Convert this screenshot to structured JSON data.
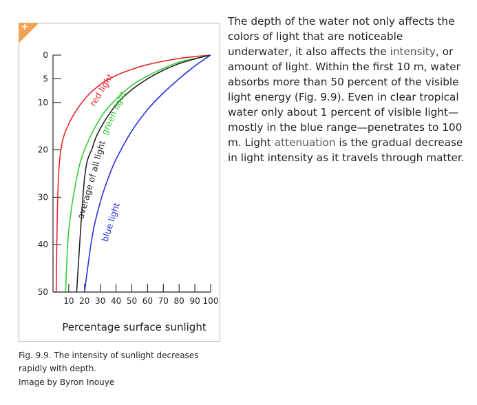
{
  "chart_data": {
    "type": "line",
    "xlabel": "Percentage surface sunlight",
    "ylabel": "",
    "xlim": [
      0,
      100
    ],
    "ylim": [
      0,
      50
    ],
    "y_inverted": true,
    "x_ticks": [
      10,
      20,
      30,
      40,
      50,
      60,
      70,
      80,
      90,
      100
    ],
    "y_ticks": [
      0,
      5,
      10,
      20,
      30,
      40,
      50
    ],
    "series": [
      {
        "name": "red light",
        "color": "#e8232a",
        "x": [
          100,
          90,
          80,
          70,
          60,
          50,
          40,
          30,
          20,
          10,
          5,
          3,
          2
        ],
        "y": [
          0,
          0.3,
          0.7,
          1.3,
          2,
          3,
          4.3,
          6.2,
          9.3,
          14.5,
          20,
          30,
          50
        ]
      },
      {
        "name": "green light",
        "color": "#33cc33",
        "x": [
          100,
          90,
          80,
          70,
          60,
          50,
          40,
          30,
          20,
          15,
          10,
          8
        ],
        "y": [
          0,
          0.7,
          1.5,
          2.8,
          4.4,
          6.4,
          9.3,
          13.3,
          20,
          26,
          37,
          50
        ]
      },
      {
        "name": "average of all light",
        "color": "#222222",
        "x": [
          100,
          90,
          80,
          70,
          60,
          50,
          40,
          30,
          25,
          20,
          15
        ],
        "y": [
          0,
          0.8,
          1.8,
          3.2,
          5,
          7.3,
          10.5,
          15.5,
          19.5,
          26,
          50
        ]
      },
      {
        "name": "blue light",
        "color": "#2233dd",
        "x": [
          100,
          90,
          80,
          70,
          60,
          50,
          40,
          35,
          30,
          25,
          20
        ],
        "y": [
          0,
          2.3,
          5,
          8,
          11.5,
          16,
          22,
          26,
          31,
          38,
          50
        ]
      }
    ]
  },
  "body": {
    "p1": "The depth of the water not only affects the colors of light that are noticeable underwater, it also affects the ",
    "kw1": "intensity",
    "p2": ", or amount of light. Within the first 10 m, water absorbs more than 50 percent of the visible light energy (Fig. 9.9). Even in clear tropical water only about 1 percent of visible light—mostly in the blue range—penetrates to 100 m. Light ",
    "kw2": "attenuation",
    "p3": " is the gradual decrease in light intensity as it travels through matter."
  },
  "caption": "Fig. 9.9. The intensity of sunlight decreases rapidly with depth.",
  "credit": "Image by Byron Inouye",
  "expand_symbol": "+"
}
